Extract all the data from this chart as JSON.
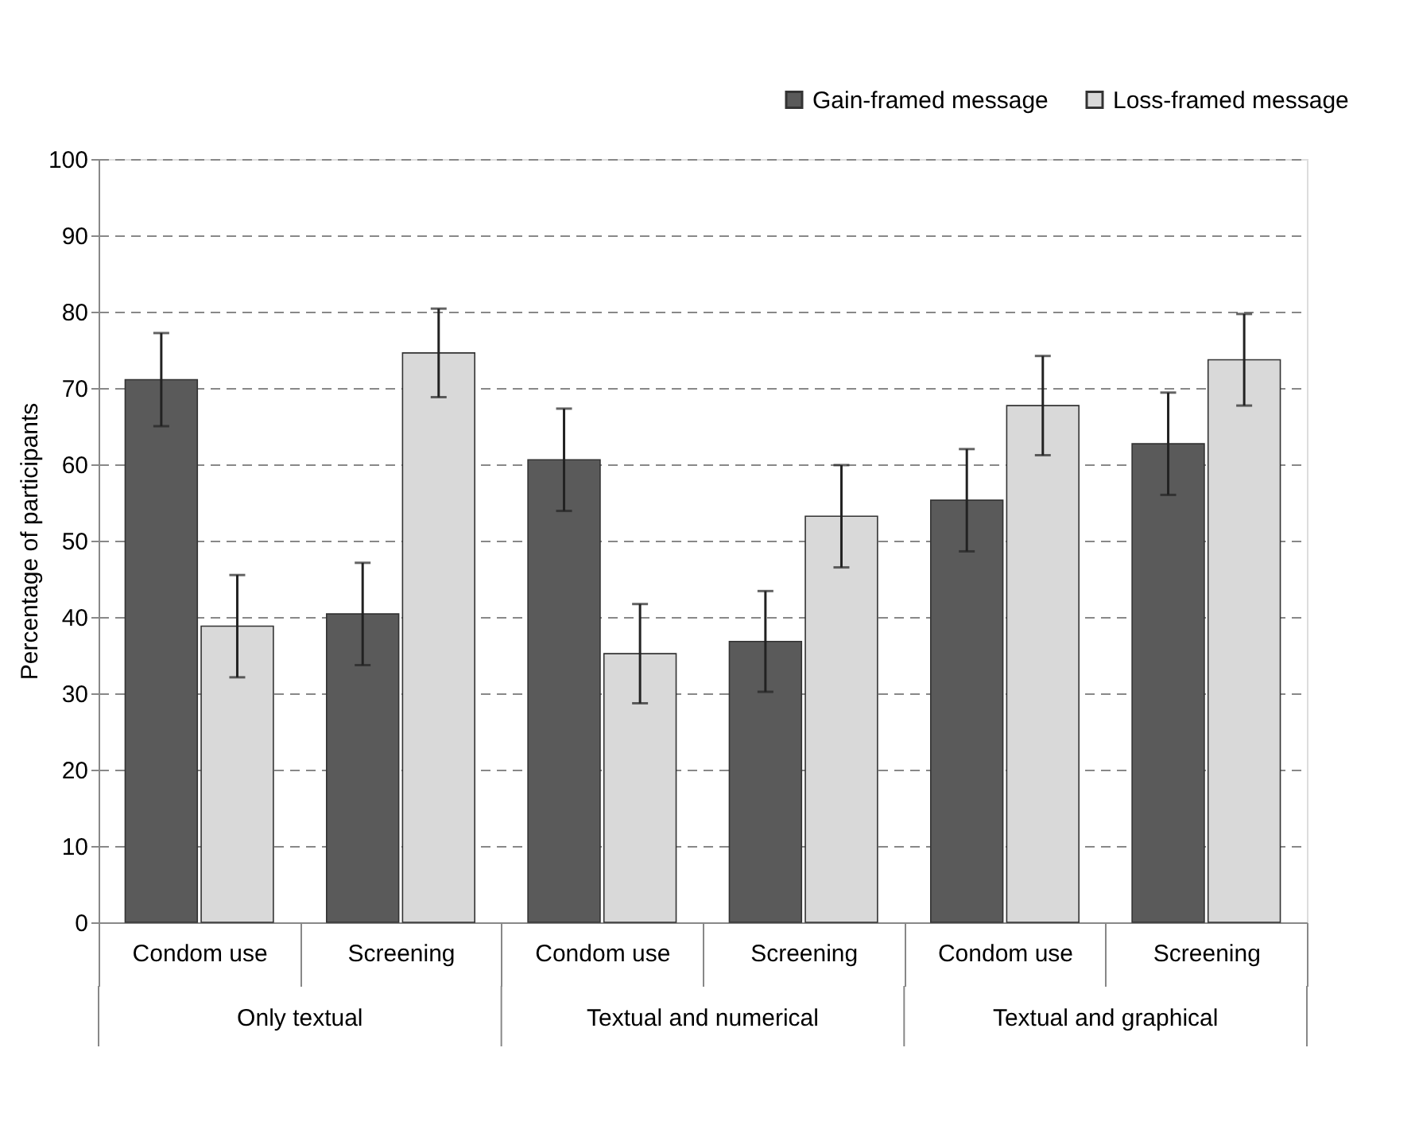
{
  "chart_data": {
    "type": "bar",
    "ylabel": "Percentage of participants",
    "categories": [
      "Condom use",
      "Screening",
      "Condom use",
      "Screening",
      "Condom use",
      "Screening"
    ],
    "series": [
      {
        "name": "Gain-framed message",
        "color": "#5a5a5a",
        "values": [
          71.1,
          40.4,
          60.6,
          36.8,
          55.3,
          62.7
        ],
        "errors": [
          6.1,
          6.7,
          6.7,
          6.6,
          6.7,
          6.7
        ]
      },
      {
        "name": "Loss-framed message",
        "color": "#d9d9d9",
        "values": [
          38.8,
          74.6,
          35.2,
          53.2,
          67.7,
          73.7
        ],
        "errors": [
          6.7,
          5.8,
          6.5,
          6.7,
          6.5,
          6.0
        ]
      }
    ],
    "annotations": [
      "Only textual",
      "Textual and numerical",
      "Textual and graphical"
    ],
    "ylim": [
      0,
      100
    ],
    "yticks": [
      0,
      10,
      20,
      30,
      40,
      50,
      60,
      70,
      80,
      90,
      100
    ],
    "grid": "y",
    "legend": "top right"
  }
}
